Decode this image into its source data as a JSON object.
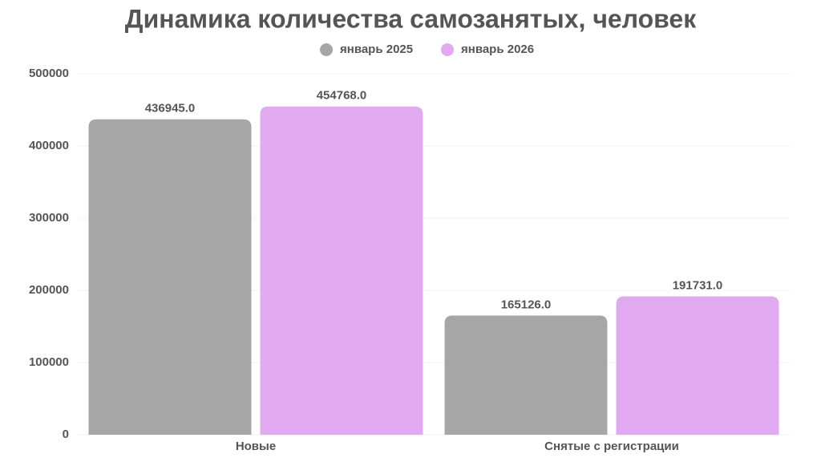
{
  "chart_data": {
    "type": "bar",
    "title": "Динамика количества самозанятых, человек",
    "categories": [
      "Новые",
      "Снятые с регистрации"
    ],
    "series": [
      {
        "name": "январь 2025",
        "color": "#a6a6a6",
        "values": [
          436945,
          165126
        ],
        "value_labels": [
          "436945.0",
          "165126.0"
        ]
      },
      {
        "name": "январь 2026",
        "color": "#e1aaf0",
        "values": [
          454768,
          191731
        ],
        "value_labels": [
          "454768.0",
          "191731.0"
        ]
      }
    ],
    "ylim": [
      0,
      500000
    ],
    "yticks": [
      0,
      100000,
      200000,
      300000,
      400000,
      500000
    ],
    "grid": true,
    "legend": "top"
  }
}
